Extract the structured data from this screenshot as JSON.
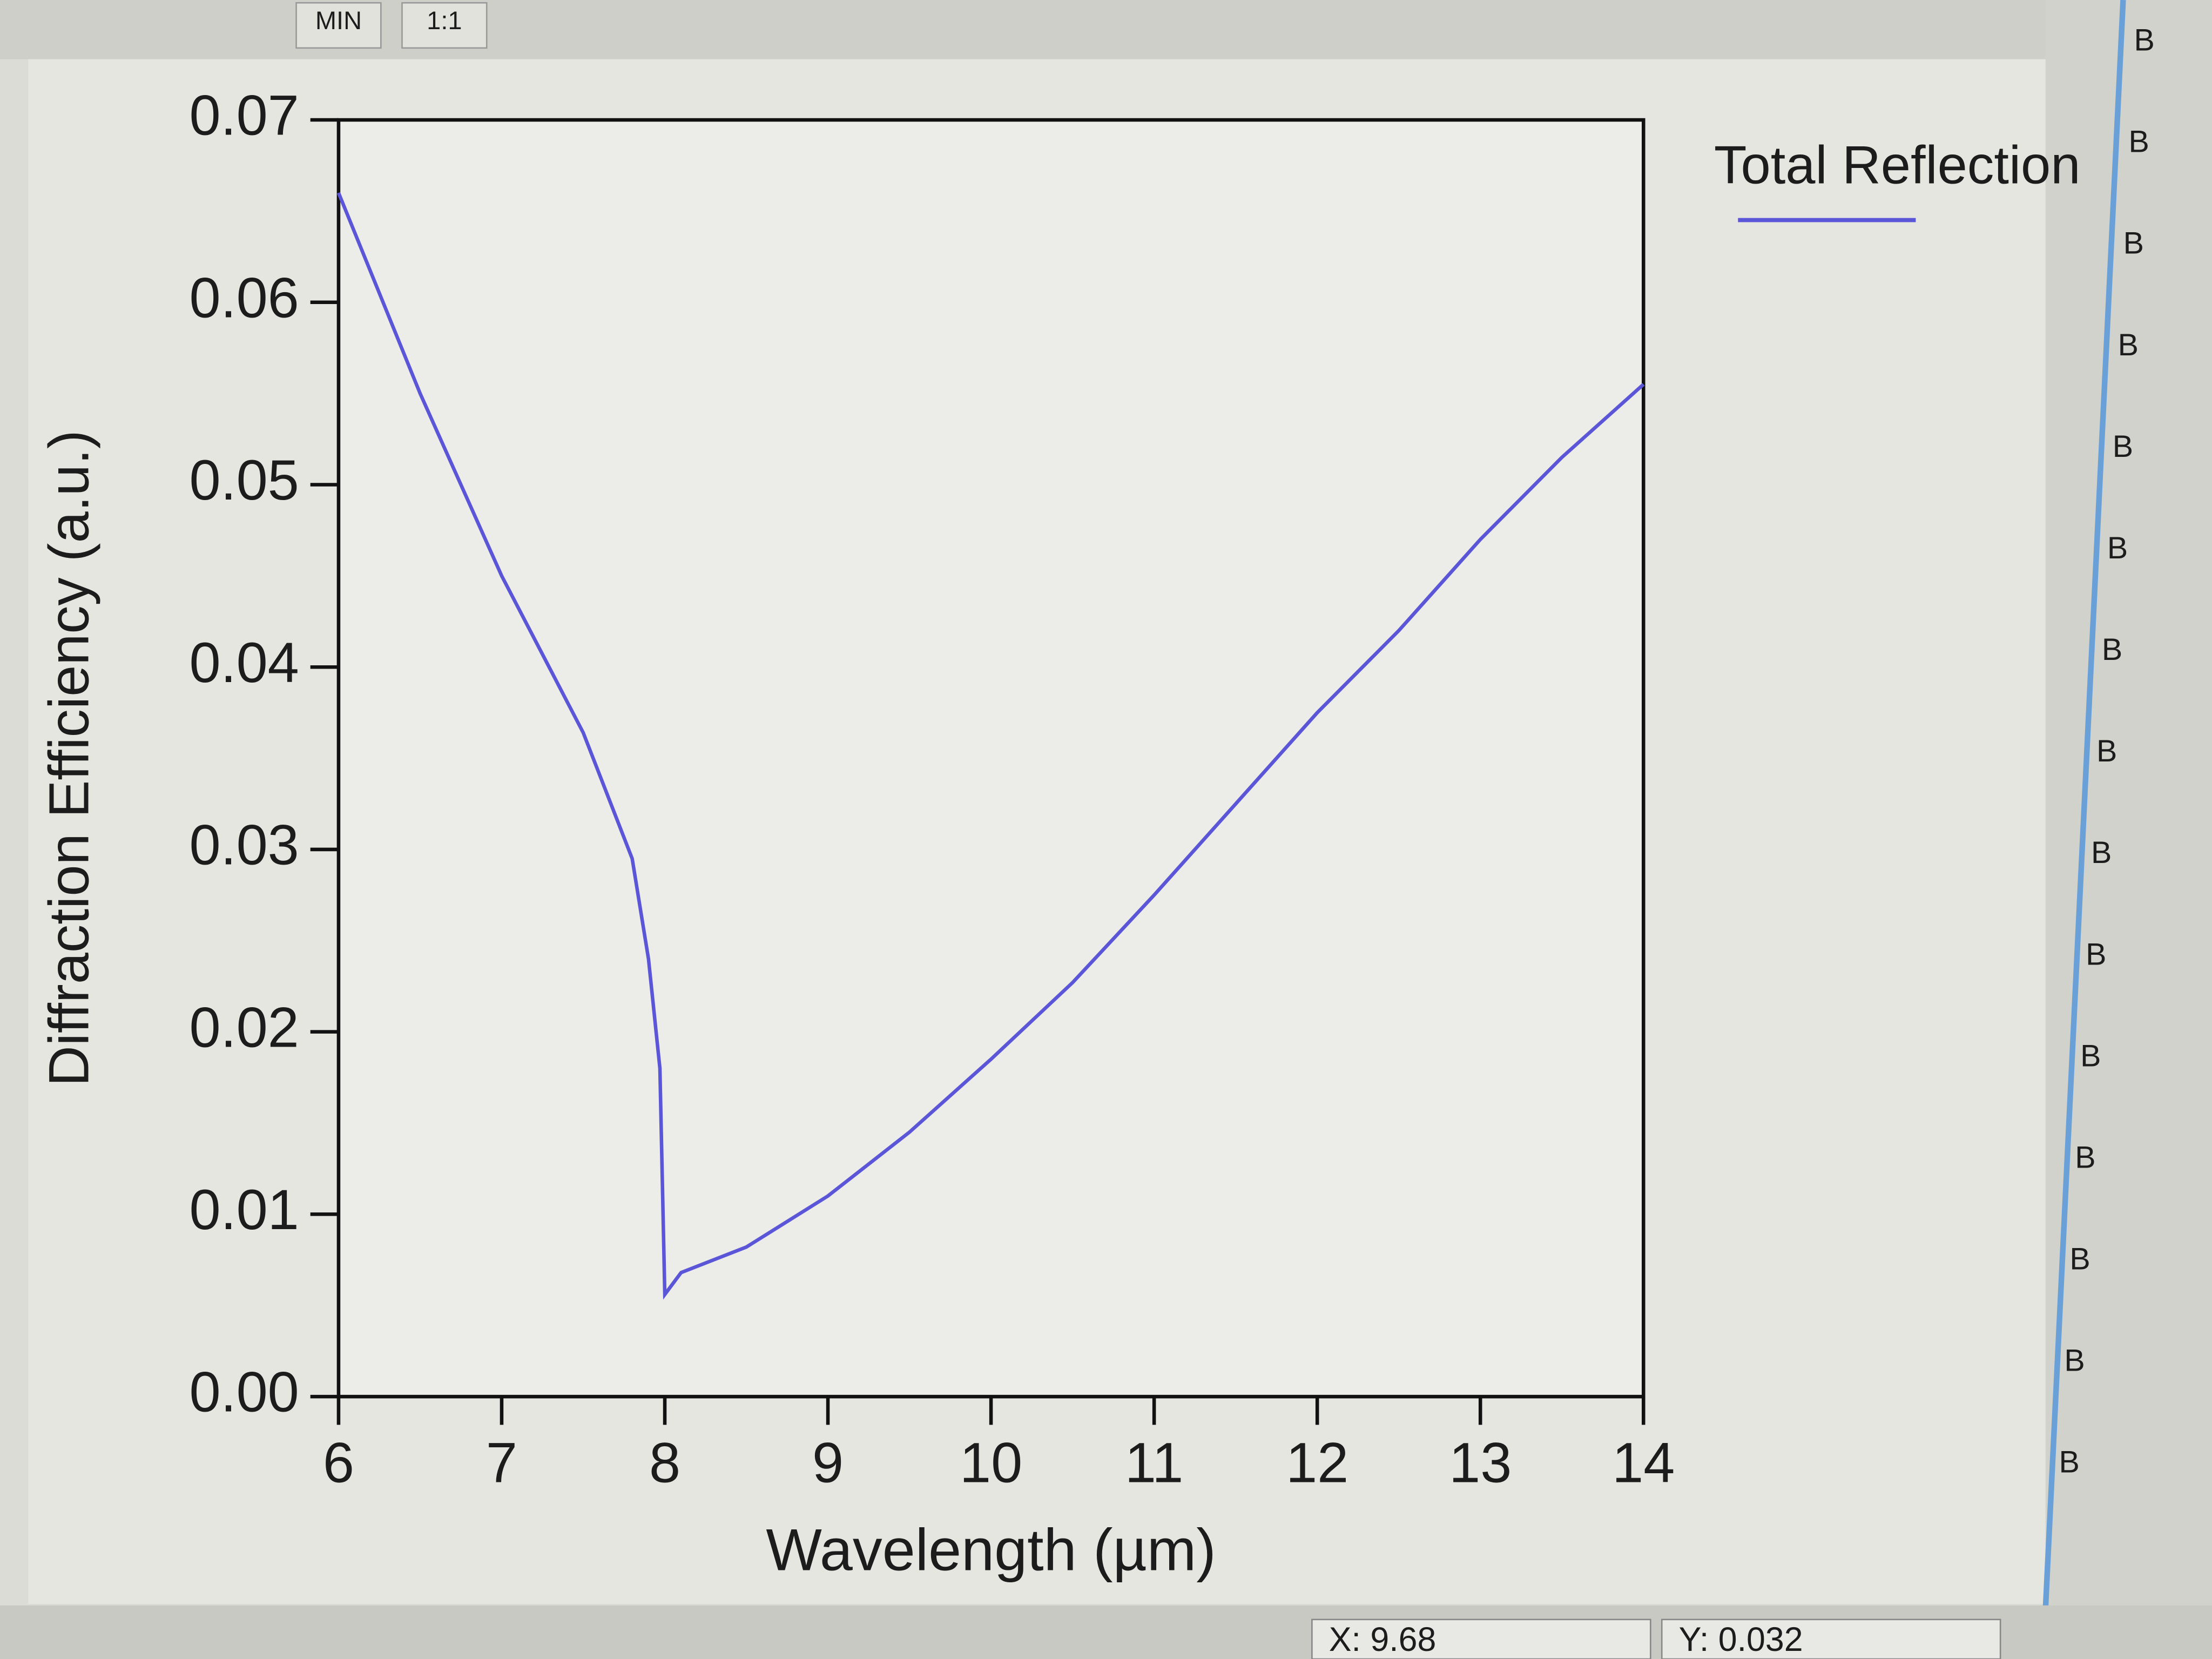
{
  "chart_data": {
    "type": "line",
    "x_label": "Wavelength (µm)",
    "y_label": "Diffraction Efficiency (a.u.)",
    "x": [
      6,
      6.5,
      7,
      7.5,
      7.8,
      7.9,
      7.97,
      8.0,
      8.1,
      8.5,
      9,
      9.5,
      10,
      10.5,
      11,
      11.5,
      12,
      12.5,
      13,
      13.5,
      14
    ],
    "series": [
      {
        "name": "Total Reflection",
        "color": "#5b55d8",
        "values": [
          0.066,
          0.055,
          0.045,
          0.0364,
          0.0295,
          0.024,
          0.018,
          0.0056,
          0.0068,
          0.0082,
          0.011,
          0.0145,
          0.0185,
          0.0227,
          0.0275,
          0.0325,
          0.0375,
          0.042,
          0.047,
          0.0515,
          0.0555
        ]
      }
    ],
    "xlim": [
      6,
      14
    ],
    "xticks": [
      6,
      7,
      8,
      9,
      10,
      11,
      12,
      13,
      14
    ],
    "ylim": [
      0,
      0.07
    ],
    "yticks": [
      {
        "value": 0,
        "label": "0.00"
      },
      0.01,
      0.02,
      0.03,
      0.04,
      0.05,
      0.06,
      0.07
    ],
    "grid": false,
    "legend": "right"
  },
  "toolbar": [
    "MIN",
    "1:1"
  ],
  "side_buttons": [
    "B",
    "B",
    "B",
    "B",
    "B",
    "B",
    "B",
    "B",
    "B",
    "B",
    "B",
    "B",
    "B",
    "B",
    "B"
  ],
  "status_bar": {
    "x": "X: 9.68",
    "y": "Y: 0.032"
  }
}
